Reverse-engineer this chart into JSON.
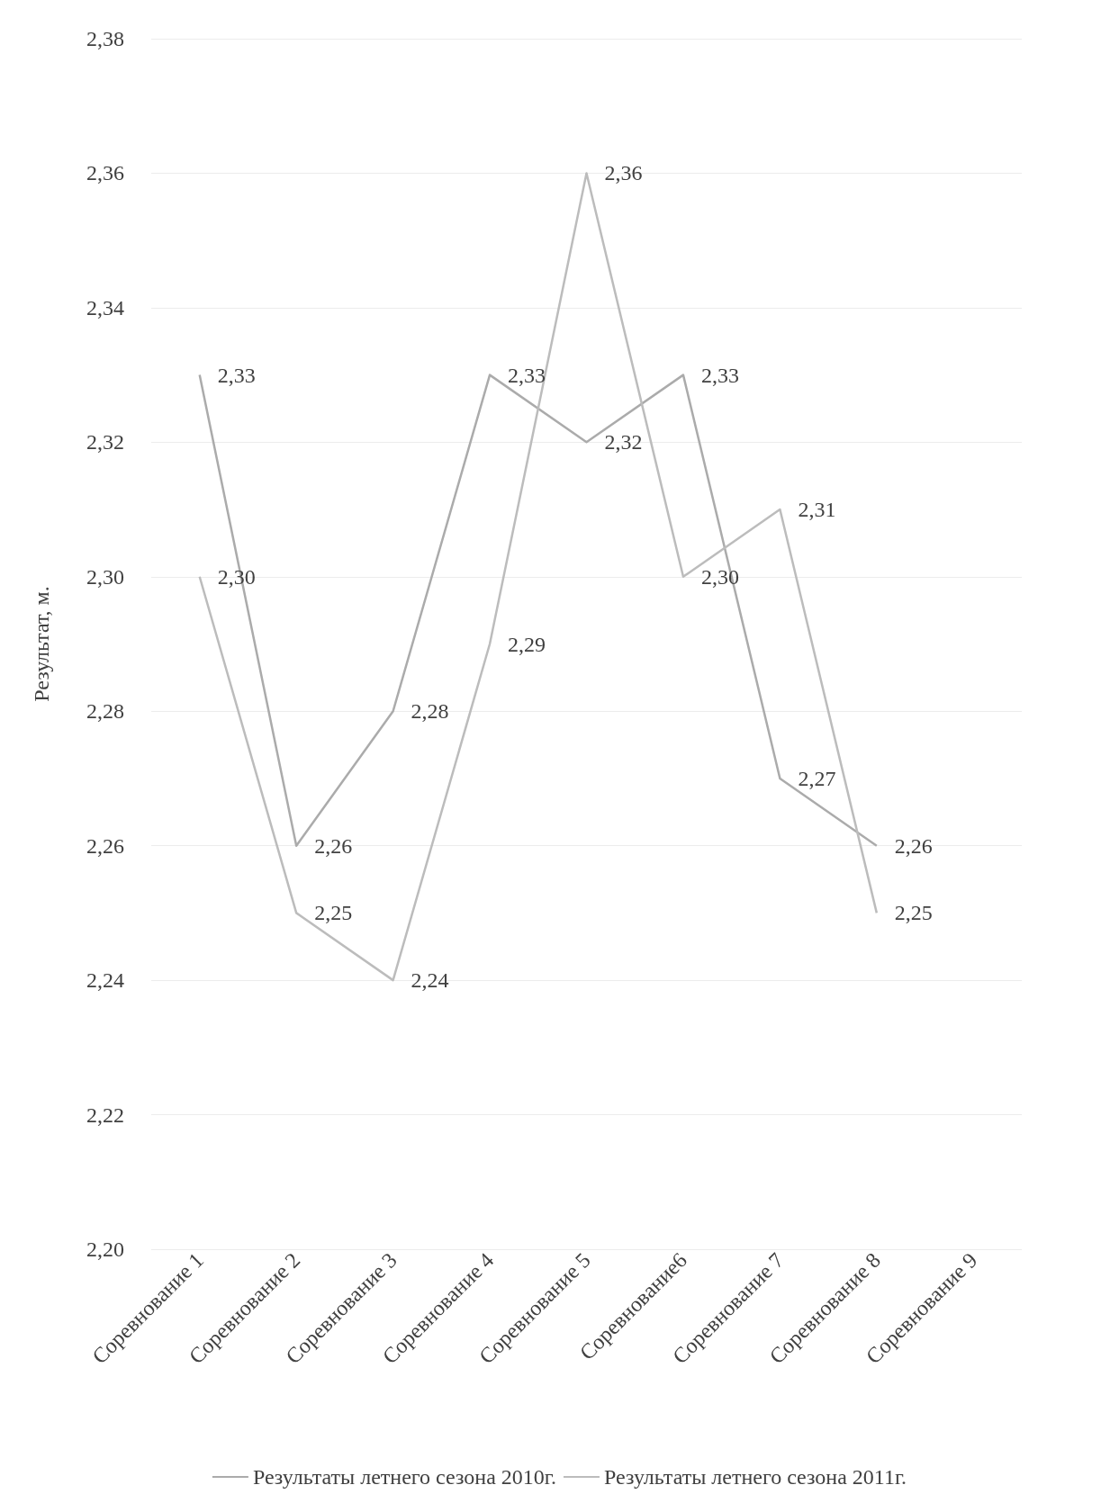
{
  "chart_data": {
    "type": "line",
    "ylabel": "Результат, м.",
    "categories": [
      "Соревнование 1",
      "Соревнование 2",
      "Соревнование 3",
      "Соревнование 4",
      "Соревнование 5",
      "Соревнование6",
      "Соревнование 7",
      "Соревнование 8",
      "Соревнование 9"
    ],
    "series": [
      {
        "name": "Результаты летнего сезона 2010г.",
        "color": "#ababab",
        "values": [
          2.33,
          2.26,
          2.28,
          2.33,
          2.32,
          2.33,
          2.27,
          2.26,
          null
        ],
        "value_labels": [
          "2,33",
          "2,26",
          "2,28",
          "2,33",
          "2,32",
          "2,33",
          "2,27",
          "2,26",
          null
        ]
      },
      {
        "name": "Результаты летнего сезона 2011г.",
        "color": "#bcbcbc",
        "values": [
          2.3,
          2.25,
          2.24,
          2.29,
          2.36,
          2.3,
          2.31,
          2.25,
          null
        ],
        "value_labels": [
          "2,30",
          "2,25",
          "2,24",
          "2,29",
          "2,36",
          "2,30",
          "2,31",
          "2,25",
          null
        ]
      }
    ],
    "ylim": [
      2.2,
      2.38
    ],
    "yticks": [
      {
        "value": 2.2,
        "label": "2,20"
      },
      {
        "value": 2.22,
        "label": "2,22"
      },
      {
        "value": 2.24,
        "label": "2,24"
      },
      {
        "value": 2.26,
        "label": "2,26"
      },
      {
        "value": 2.28,
        "label": "2,28"
      },
      {
        "value": 2.3,
        "label": "2,30"
      },
      {
        "value": 2.32,
        "label": "2,32"
      },
      {
        "value": 2.34,
        "label": "2,34"
      },
      {
        "value": 2.36,
        "label": "2,36"
      },
      {
        "value": 2.38,
        "label": "2,38"
      }
    ],
    "grid": "y",
    "legend": "bottom",
    "marker": "none",
    "line_style": "solid"
  }
}
